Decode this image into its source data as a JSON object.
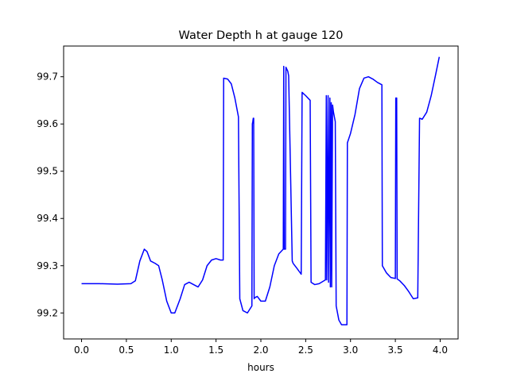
{
  "chart_data": {
    "type": "line",
    "title": "Water Depth h at gauge 120",
    "xlabel": "hours",
    "ylabel": "",
    "xlim": [
      -0.2,
      4.2
    ],
    "ylim": [
      99.145,
      99.765
    ],
    "xticks": [
      0.0,
      0.5,
      1.0,
      1.5,
      2.0,
      2.5,
      3.0,
      3.5,
      4.0
    ],
    "xtick_labels": [
      "0.0",
      "0.5",
      "1.0",
      "1.5",
      "2.0",
      "2.5",
      "3.0",
      "3.5",
      "4.0"
    ],
    "yticks": [
      99.2,
      99.3,
      99.4,
      99.5,
      99.6,
      99.7
    ],
    "ytick_labels": [
      "99.2",
      "99.3",
      "99.4",
      "99.5",
      "99.6",
      "99.7"
    ],
    "grid": false,
    "series": [
      {
        "name": "",
        "color": "#0000ff",
        "x": [
          0.0,
          0.2,
          0.4,
          0.55,
          0.6,
          0.65,
          0.7,
          0.73,
          0.77,
          0.82,
          0.86,
          0.9,
          0.95,
          1.0,
          1.04,
          1.1,
          1.15,
          1.2,
          1.25,
          1.3,
          1.35,
          1.4,
          1.45,
          1.5,
          1.55,
          1.58,
          1.585,
          1.63,
          1.67,
          1.71,
          1.75,
          1.765,
          1.8,
          1.85,
          1.9,
          1.905,
          1.91,
          1.915,
          1.92,
          1.925,
          1.93,
          1.96,
          2.0,
          2.05,
          2.1,
          2.15,
          2.2,
          2.25,
          2.255,
          2.26,
          2.275,
          2.28,
          2.3,
          2.31,
          2.35,
          2.36,
          2.4,
          2.45,
          2.46,
          2.5,
          2.55,
          2.56,
          2.6,
          2.65,
          2.72,
          2.73,
          2.735,
          2.75,
          2.755,
          2.77,
          2.775,
          2.785,
          2.79,
          2.8,
          2.81,
          2.83,
          2.84,
          2.87,
          2.9,
          2.93,
          2.96,
          2.965,
          3.0,
          3.05,
          3.1,
          3.15,
          3.2,
          3.25,
          3.3,
          3.35,
          3.355,
          3.4,
          3.45,
          3.5,
          3.505,
          3.515,
          3.52,
          3.55,
          3.6,
          3.65,
          3.7,
          3.75,
          3.77,
          3.775,
          3.8,
          3.85,
          3.9,
          3.95,
          3.99
        ],
        "values": [
          99.262,
          99.262,
          99.261,
          99.262,
          99.268,
          99.31,
          99.335,
          99.33,
          99.31,
          99.305,
          99.3,
          99.27,
          99.225,
          99.2,
          99.2,
          99.23,
          99.26,
          99.265,
          99.26,
          99.255,
          99.27,
          99.3,
          99.312,
          99.315,
          99.312,
          99.312,
          99.697,
          99.695,
          99.685,
          99.655,
          99.615,
          99.23,
          99.205,
          99.2,
          99.215,
          99.6,
          99.605,
          99.612,
          99.612,
          99.23,
          99.232,
          99.235,
          99.225,
          99.225,
          99.255,
          99.3,
          99.325,
          99.335,
          99.722,
          99.335,
          99.335,
          99.72,
          99.712,
          99.702,
          99.31,
          99.305,
          99.295,
          99.282,
          99.667,
          99.66,
          99.65,
          99.265,
          99.26,
          99.262,
          99.27,
          99.66,
          99.27,
          99.66,
          99.265,
          99.655,
          99.255,
          99.645,
          99.255,
          99.64,
          99.625,
          99.605,
          99.215,
          99.185,
          99.175,
          99.175,
          99.175,
          99.56,
          99.58,
          99.62,
          99.675,
          99.697,
          99.7,
          99.695,
          99.688,
          99.683,
          99.3,
          99.285,
          99.275,
          99.273,
          99.655,
          99.655,
          99.272,
          99.268,
          99.258,
          99.245,
          99.23,
          99.232,
          99.612,
          99.612,
          99.61,
          99.625,
          99.66,
          99.705,
          99.742
        ]
      }
    ]
  }
}
